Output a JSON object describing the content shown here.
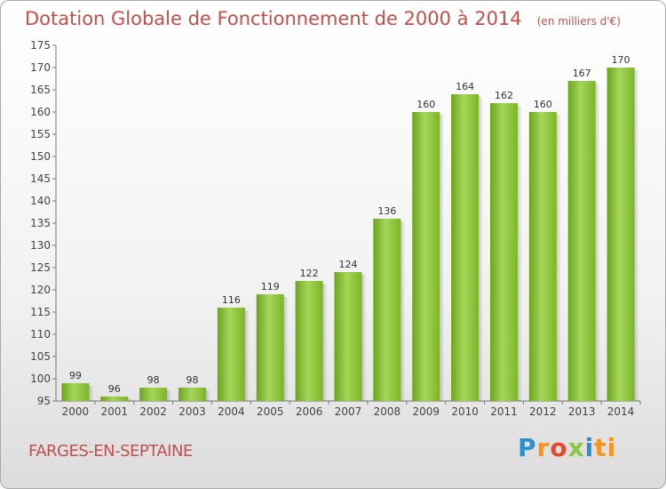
{
  "chart_data": {
    "type": "bar",
    "title": "Dotation Globale de Fonctionnement de 2000 à 2014",
    "subtitle": "(en milliers d'€)",
    "categories": [
      "2000",
      "2001",
      "2002",
      "2003",
      "2004",
      "2005",
      "2006",
      "2007",
      "2008",
      "2009",
      "2010",
      "2011",
      "2012",
      "2013",
      "2014"
    ],
    "values": [
      99,
      96,
      98,
      98,
      116,
      119,
      122,
      124,
      136,
      160,
      164,
      162,
      160,
      167,
      170
    ],
    "ylim": [
      95,
      175
    ],
    "yticks": [
      95,
      100,
      105,
      110,
      115,
      120,
      125,
      130,
      135,
      140,
      145,
      150,
      155,
      160,
      165,
      170,
      175
    ],
    "grid": false,
    "legend": "none",
    "colors": {
      "bar_light": "#a6d65a",
      "bar_dark": "#6aa51c",
      "title": "#c0504d"
    }
  },
  "commune": "FARGES-EN-SEPTAINE",
  "brand": {
    "letters": [
      "P",
      "r",
      "o",
      "x",
      "i",
      "ti"
    ]
  }
}
